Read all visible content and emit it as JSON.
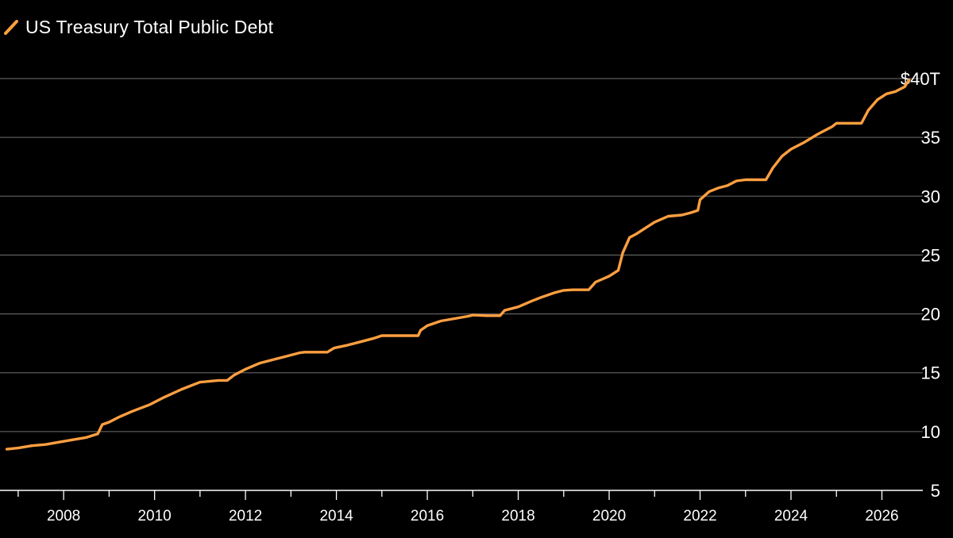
{
  "colors": {
    "background": "#000000",
    "line": "#FF9F40",
    "grid": "#5a5a5a",
    "text": "#ffffff"
  },
  "chart_data": {
    "type": "line",
    "title": "",
    "legend": {
      "position": "top-left",
      "entries": [
        "US Treasury Total Public Debt"
      ]
    },
    "xlabel": "",
    "ylabel": "",
    "grid": true,
    "y_axis_position": "right",
    "xlim": [
      2006.6,
      2026.9
    ],
    "ylim": [
      5,
      40
    ],
    "y_ticks": [
      {
        "value": 5,
        "label": "5"
      },
      {
        "value": 10,
        "label": "10"
      },
      {
        "value": 15,
        "label": "15"
      },
      {
        "value": 20,
        "label": "20"
      },
      {
        "value": 25,
        "label": "25"
      },
      {
        "value": 30,
        "label": "30"
      },
      {
        "value": 35,
        "label": "35"
      },
      {
        "value": 40,
        "label": "$40T"
      }
    ],
    "x_ticks": [
      {
        "value": 2008,
        "label": "2008"
      },
      {
        "value": 2010,
        "label": "2010"
      },
      {
        "value": 2012,
        "label": "2012"
      },
      {
        "value": 2014,
        "label": "2014"
      },
      {
        "value": 2016,
        "label": "2016"
      },
      {
        "value": 2018,
        "label": "2018"
      },
      {
        "value": 2020,
        "label": "2020"
      },
      {
        "value": 2022,
        "label": "2022"
      },
      {
        "value": 2024,
        "label": "2024"
      },
      {
        "value": 2026,
        "label": "2026"
      }
    ],
    "series": [
      {
        "name": "US Treasury Total Public Debt",
        "x": [
          2006.75,
          2007.0,
          2007.3,
          2007.6,
          2007.9,
          2008.2,
          2008.5,
          2008.75,
          2008.85,
          2009.0,
          2009.2,
          2009.5,
          2009.9,
          2010.2,
          2010.6,
          2011.0,
          2011.4,
          2011.6,
          2011.75,
          2012.0,
          2012.3,
          2012.6,
          2012.9,
          2013.2,
          2013.3,
          2013.45,
          2013.6,
          2013.8,
          2013.95,
          2014.2,
          2014.5,
          2014.8,
          2015.0,
          2015.2,
          2015.5,
          2015.8,
          2015.85,
          2016.0,
          2016.3,
          2016.6,
          2016.9,
          2017.0,
          2017.3,
          2017.6,
          2017.7,
          2018.0,
          2018.3,
          2018.5,
          2018.8,
          2019.0,
          2019.2,
          2019.4,
          2019.55,
          2019.7,
          2020.0,
          2020.2,
          2020.3,
          2020.45,
          2020.6,
          2020.8,
          2021.0,
          2021.3,
          2021.6,
          2021.8,
          2021.95,
          2022.0,
          2022.2,
          2022.4,
          2022.6,
          2022.8,
          2023.0,
          2023.2,
          2023.35,
          2023.45,
          2023.6,
          2023.8,
          2024.0,
          2024.3,
          2024.6,
          2024.9,
          2025.0,
          2025.3,
          2025.5,
          2025.55,
          2025.7,
          2025.9,
          2026.1,
          2026.3,
          2026.5,
          2026.6
        ],
        "values": [
          8.5,
          8.6,
          8.8,
          8.9,
          9.1,
          9.3,
          9.5,
          9.8,
          10.6,
          10.8,
          11.2,
          11.7,
          12.3,
          12.9,
          13.6,
          14.2,
          14.35,
          14.35,
          14.8,
          15.3,
          15.8,
          16.1,
          16.4,
          16.7,
          16.75,
          16.75,
          16.75,
          16.75,
          17.1,
          17.3,
          17.6,
          17.9,
          18.15,
          18.15,
          18.15,
          18.15,
          18.6,
          19.0,
          19.4,
          19.6,
          19.8,
          19.9,
          19.85,
          19.85,
          20.3,
          20.6,
          21.1,
          21.4,
          21.8,
          22.0,
          22.05,
          22.05,
          22.05,
          22.7,
          23.2,
          23.7,
          25.2,
          26.5,
          26.8,
          27.3,
          27.8,
          28.3,
          28.4,
          28.6,
          28.8,
          29.7,
          30.4,
          30.7,
          30.9,
          31.3,
          31.4,
          31.4,
          31.4,
          31.4,
          32.4,
          33.4,
          34.0,
          34.6,
          35.3,
          35.9,
          36.2,
          36.2,
          36.2,
          36.2,
          37.3,
          38.2,
          38.7,
          38.9,
          39.3,
          39.9
        ]
      }
    ]
  }
}
